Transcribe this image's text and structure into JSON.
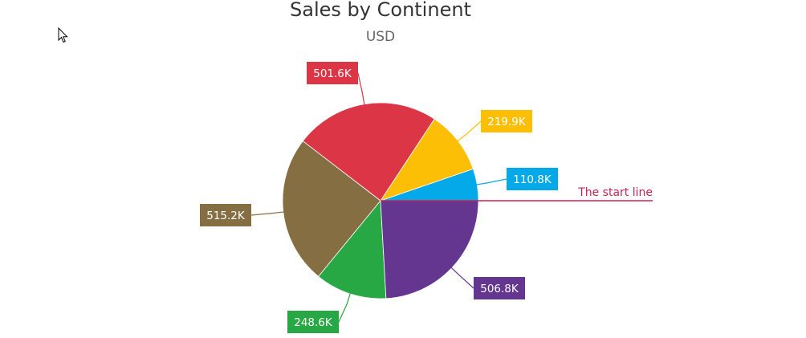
{
  "chart_data": {
    "type": "pie",
    "title": "Sales by Continent",
    "subtitle": "USD",
    "slices": [
      {
        "label": "110.8K",
        "value": 110.8,
        "color": "#03a9e9"
      },
      {
        "label": "219.9K",
        "value": 219.9,
        "color": "#fdbf06"
      },
      {
        "label": "501.6K",
        "value": 501.6,
        "color": "#dc3545"
      },
      {
        "label": "515.2K",
        "value": 515.2,
        "color": "#856f42"
      },
      {
        "label": "248.6K",
        "value": 248.6,
        "color": "#27a844"
      },
      {
        "label": "506.8K",
        "value": 506.8,
        "color": "#64368f"
      }
    ],
    "annotation": {
      "text": "The start line",
      "color": "#cc2255"
    }
  }
}
